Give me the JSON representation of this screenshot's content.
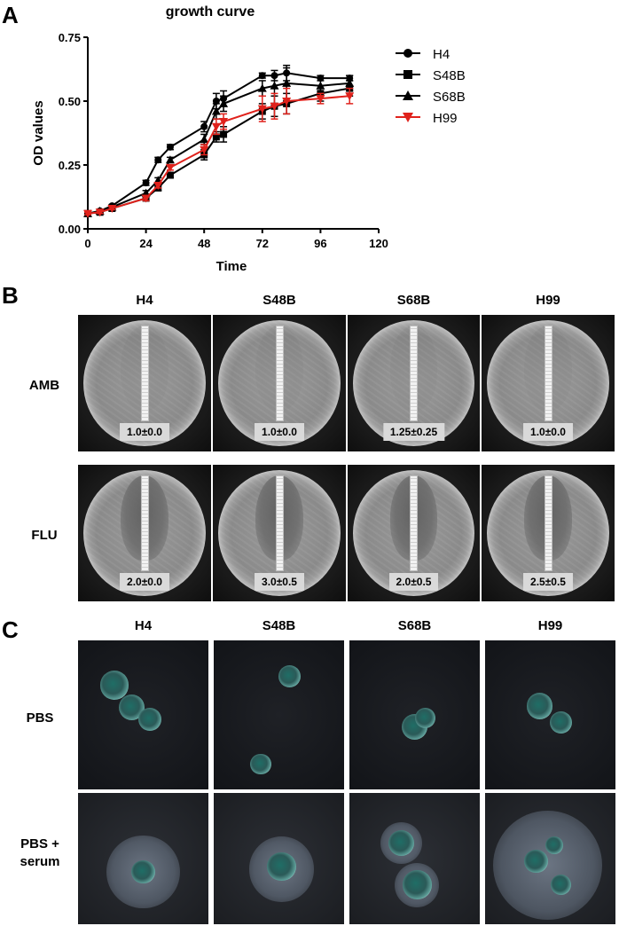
{
  "panels": {
    "a": "A",
    "b": "B",
    "c": "C"
  },
  "chart_data": {
    "type": "line",
    "title": "growth curve",
    "xlabel": "Time",
    "ylabel": "OD values",
    "xlim": [
      0,
      120
    ],
    "ylim": [
      0,
      0.75
    ],
    "xticks": [
      "0",
      "24",
      "48",
      "72",
      "96",
      "120"
    ],
    "yticks": [
      "0.00",
      "0.25",
      "0.50",
      "0.75"
    ],
    "legend_position": "right",
    "grid": false,
    "series": [
      {
        "name": "H4",
        "color": "#000000",
        "marker": "circle",
        "x": [
          0,
          5,
          10,
          24,
          29,
          34,
          48,
          53,
          56,
          72,
          77,
          82,
          96,
          108
        ],
        "y": [
          0.06,
          0.07,
          0.09,
          0.18,
          0.27,
          0.32,
          0.4,
          0.5,
          0.51,
          0.6,
          0.6,
          0.61,
          0.59,
          0.59
        ],
        "err": [
          0.005,
          0.005,
          0.005,
          0.01,
          0.01,
          0.01,
          0.02,
          0.03,
          0.03,
          0.01,
          0.02,
          0.03,
          0.01,
          0.01
        ]
      },
      {
        "name": "S48B",
        "color": "#000000",
        "marker": "square",
        "x": [
          0,
          5,
          10,
          24,
          29,
          34,
          48,
          53,
          56,
          72,
          77,
          82,
          96,
          108
        ],
        "y": [
          0.06,
          0.065,
          0.08,
          0.12,
          0.16,
          0.21,
          0.29,
          0.36,
          0.37,
          0.46,
          0.48,
          0.49,
          0.53,
          0.55
        ],
        "err": [
          0.005,
          0.005,
          0.005,
          0.01,
          0.01,
          0.01,
          0.02,
          0.02,
          0.03,
          0.03,
          0.04,
          0.04,
          0.03,
          0.03
        ]
      },
      {
        "name": "S68B",
        "color": "#000000",
        "marker": "triangle-up",
        "x": [
          0,
          5,
          10,
          24,
          29,
          34,
          48,
          53,
          56,
          72,
          77,
          82,
          96,
          108
        ],
        "y": [
          0.06,
          0.07,
          0.085,
          0.14,
          0.19,
          0.27,
          0.35,
          0.46,
          0.49,
          0.55,
          0.56,
          0.57,
          0.56,
          0.57
        ],
        "err": [
          0.005,
          0.005,
          0.005,
          0.01,
          0.01,
          0.01,
          0.02,
          0.03,
          0.03,
          0.03,
          0.04,
          0.06,
          0.03,
          0.03
        ]
      },
      {
        "name": "H99",
        "color": "#e0221c",
        "marker": "triangle-down",
        "x": [
          0,
          5,
          10,
          24,
          29,
          34,
          48,
          53,
          56,
          72,
          77,
          82,
          96,
          108
        ],
        "y": [
          0.06,
          0.065,
          0.08,
          0.12,
          0.17,
          0.24,
          0.31,
          0.4,
          0.42,
          0.47,
          0.48,
          0.5,
          0.51,
          0.52
        ],
        "err": [
          0.005,
          0.005,
          0.005,
          0.01,
          0.01,
          0.01,
          0.02,
          0.03,
          0.03,
          0.05,
          0.05,
          0.05,
          0.02,
          0.03
        ]
      }
    ]
  },
  "etest": {
    "columns": [
      "H4",
      "S48B",
      "S68B",
      "H99"
    ],
    "rows": [
      {
        "label": "AMB",
        "values": [
          "1.0±0.0",
          "1.0±0.0",
          "1.25±0.25",
          "1.0±0.0"
        ]
      },
      {
        "label": "FLU",
        "values": [
          "2.0±0.0",
          "3.0±0.5",
          "2.0±0.5",
          "2.5±0.5"
        ]
      }
    ]
  },
  "microscopy": {
    "columns": [
      "H4",
      "S48B",
      "S68B",
      "H99"
    ],
    "rows": [
      {
        "label_line1": "PBS",
        "label_line2": ""
      },
      {
        "label_line1": "PBS +",
        "label_line2": "serum"
      }
    ]
  }
}
